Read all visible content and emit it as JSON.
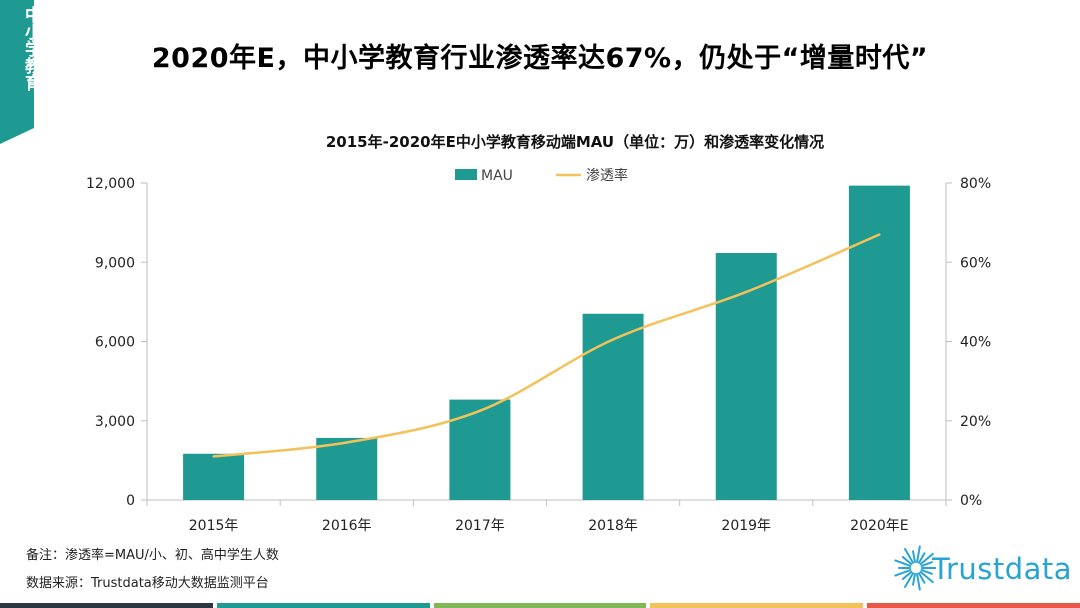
{
  "side_tab": {
    "label": "中小学教育",
    "color": "#1f9a92"
  },
  "main_title": "2020年E，中小学教育行业渗透率达67%，仍处于“增量时代”",
  "chart_data": {
    "type": "bar",
    "title": "2015年-2020年E中小学教育移动端MAU（单位：万）和渗透率变化情况",
    "categories": [
      "2015年",
      "2016年",
      "2017年",
      "2018年",
      "2019年",
      "2020年E"
    ],
    "series": [
      {
        "name": "MAU",
        "type": "bar",
        "axis": "left",
        "color": "#1f9a92",
        "values": [
          1750,
          2350,
          3800,
          7050,
          9350,
          11900
        ]
      },
      {
        "name": "渗透率",
        "type": "line",
        "axis": "right",
        "color": "#f3c25a",
        "values": [
          11,
          14.5,
          22.5,
          40.5,
          52.5,
          67
        ]
      }
    ],
    "y_left": {
      "range": [
        0,
        12000
      ],
      "ticks": [
        "0",
        "3,000",
        "6,000",
        "9,000",
        "12,000"
      ],
      "tick_values": [
        0,
        3000,
        6000,
        9000,
        12000
      ]
    },
    "y_right": {
      "range": [
        0,
        80
      ],
      "ticks": [
        "0%",
        "20%",
        "40%",
        "60%",
        "80%"
      ],
      "tick_values": [
        0,
        20,
        40,
        60,
        80
      ]
    },
    "legend_position": "top-center",
    "grid": false
  },
  "notes": {
    "remark": "备注：渗透率=MAU/小、初、高中学生人数",
    "source": "数据来源：Trustdata移动大数据监测平台"
  },
  "logo": {
    "text": "Trustdata",
    "color": "#29a3d3"
  },
  "bottom_strip_colors": [
    "#2b3640",
    "#1f9a92",
    "#7fb856",
    "#f3c25a",
    "#e7584b"
  ]
}
